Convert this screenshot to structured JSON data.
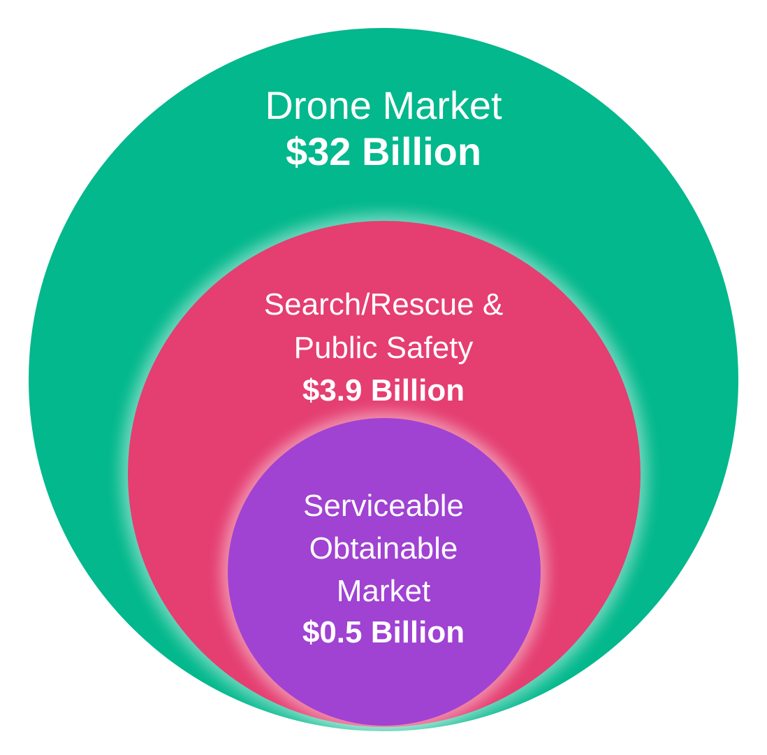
{
  "colors": {
    "outer": "#02b88c",
    "middle": "#e53e71",
    "inner": "#a042d2",
    "text": "#ffffff"
  },
  "markets": [
    {
      "name": "Drone Market",
      "value": "$32 Billion"
    },
    {
      "name": "Search/Rescue &\nPublic Safety",
      "value": "$3.9 Billion"
    },
    {
      "name": "Serviceable\nObtainable\nMarket",
      "value": "$0.5 Billion"
    }
  ]
}
